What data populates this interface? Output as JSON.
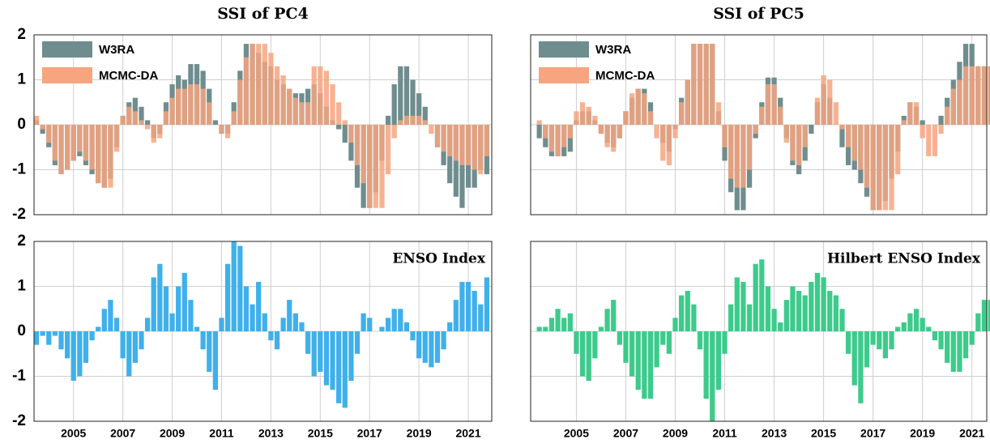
{
  "chart_data": [
    {
      "type": "bar",
      "title": "SSI of PC4",
      "legend": "upper left",
      "grid": true,
      "show_xtick_labels": false,
      "show_ytick_labels": true,
      "xlim": [
        2003.4,
        2021.95
      ],
      "ylim": [
        -2,
        2
      ],
      "xticks": [
        2005,
        2007,
        2009,
        2011,
        2013,
        2015,
        2017,
        2019,
        2021
      ],
      "yticks": [
        -2,
        -1,
        0,
        1,
        2
      ],
      "x": [
        2003.5,
        2003.75,
        2004,
        2004.25,
        2004.5,
        2004.75,
        2005,
        2005.25,
        2005.5,
        2005.75,
        2006,
        2006.25,
        2006.5,
        2006.75,
        2007,
        2007.25,
        2007.5,
        2007.75,
        2008,
        2008.25,
        2008.5,
        2008.75,
        2009,
        2009.25,
        2009.5,
        2009.75,
        2010,
        2010.25,
        2010.5,
        2010.75,
        2011,
        2011.25,
        2011.5,
        2011.75,
        2012,
        2012.25,
        2012.5,
        2012.75,
        2013,
        2013.25,
        2013.5,
        2013.75,
        2014,
        2014.25,
        2014.5,
        2014.75,
        2015,
        2015.25,
        2015.5,
        2015.75,
        2016,
        2016.25,
        2016.5,
        2016.75,
        2017,
        2017.25,
        2017.5,
        2017.75,
        2018,
        2018.25,
        2018.5,
        2018.75,
        2019,
        2019.25,
        2019.5,
        2019.75,
        2020,
        2020.25,
        2020.5,
        2020.75,
        2021,
        2021.25,
        2021.5,
        2021.75
      ],
      "series": [
        {
          "name": "W3RA",
          "color": "#6f8d8f",
          "values": [
            0.1,
            -0.2,
            -0.5,
            -0.9,
            -1.1,
            -1.0,
            -0.8,
            -0.7,
            -0.9,
            -1.1,
            -1.3,
            -1.4,
            -1.2,
            -0.5,
            0.2,
            0.5,
            0.6,
            0.4,
            0.1,
            -0.3,
            -0.2,
            0.5,
            0.9,
            1.1,
            1.0,
            1.35,
            1.35,
            1.2,
            0.8,
            0.1,
            -0.2,
            -0.2,
            0.5,
            1.2,
            1.8,
            1.8,
            1.6,
            1.4,
            1.3,
            1.0,
            0.9,
            0.8,
            0.7,
            0.7,
            0.8,
            0.9,
            0.7,
            0.4,
            0.1,
            -0.1,
            -0.4,
            -0.8,
            -1.4,
            -1.85,
            -1.85,
            -1.5,
            -0.8,
            0.2,
            0.9,
            1.3,
            1.3,
            1.0,
            0.7,
            0.4,
            0.0,
            -0.5,
            -0.9,
            -1.3,
            -1.6,
            -1.85,
            -1.4,
            -1.4,
            -1.0,
            -1.1
          ]
        },
        {
          "name": "MCMC-DA",
          "color": "#f6a57f",
          "values": [
            0.2,
            -0.1,
            -0.4,
            -0.8,
            -1.1,
            -1.0,
            -0.8,
            -0.6,
            -0.8,
            -1.0,
            -1.3,
            -1.4,
            -1.4,
            -0.6,
            0.2,
            0.4,
            0.3,
            0.1,
            -0.1,
            -0.4,
            -0.3,
            0.3,
            0.6,
            0.8,
            0.8,
            0.9,
            0.9,
            0.8,
            0.5,
            0.0,
            -0.2,
            -0.3,
            0.3,
            1.0,
            1.5,
            1.8,
            1.8,
            1.8,
            1.6,
            1.3,
            1.1,
            0.8,
            0.6,
            0.5,
            0.5,
            1.3,
            1.3,
            1.2,
            0.9,
            0.5,
            0.1,
            -0.4,
            -0.9,
            -1.3,
            -1.85,
            -1.85,
            -1.85,
            -1.1,
            -0.3,
            0.1,
            0.2,
            0.2,
            0.2,
            0.1,
            -0.2,
            -0.5,
            -0.6,
            -0.7,
            -0.8,
            -0.9,
            -0.9,
            -1.0,
            -1.1,
            -0.7
          ]
        }
      ]
    },
    {
      "type": "bar",
      "title": "SSI of PC5",
      "legend": "upper left",
      "grid": true,
      "show_xtick_labels": false,
      "show_ytick_labels": false,
      "xlim": [
        2003.15,
        2021.6
      ],
      "ylim": [
        -2,
        2
      ],
      "xticks": [
        2005,
        2007,
        2009,
        2011,
        2013,
        2015,
        2017,
        2019,
        2021
      ],
      "yticks": [
        -2,
        -1,
        0,
        1,
        2
      ],
      "x": [
        2003.5,
        2003.75,
        2004,
        2004.25,
        2004.5,
        2004.75,
        2005,
        2005.25,
        2005.5,
        2005.75,
        2006,
        2006.25,
        2006.5,
        2006.75,
        2007,
        2007.25,
        2007.5,
        2007.75,
        2008,
        2008.25,
        2008.5,
        2008.75,
        2009,
        2009.25,
        2009.5,
        2009.75,
        2010,
        2010.25,
        2010.5,
        2010.75,
        2011,
        2011.25,
        2011.5,
        2011.75,
        2012,
        2012.25,
        2012.5,
        2012.75,
        2013,
        2013.25,
        2013.5,
        2013.75,
        2014,
        2014.25,
        2014.5,
        2014.75,
        2015,
        2015.25,
        2015.5,
        2015.75,
        2016,
        2016.25,
        2016.5,
        2016.75,
        2017,
        2017.25,
        2017.5,
        2017.75,
        2018,
        2018.25,
        2018.5,
        2018.75,
        2019,
        2019.25,
        2019.5,
        2019.75,
        2020,
        2020.25,
        2020.5,
        2020.75,
        2021,
        2021.25,
        2021.5,
        2021.75
      ],
      "series": [
        {
          "name": "W3RA",
          "color": "#6f8d8f",
          "values": [
            -0.3,
            -0.5,
            -0.7,
            -0.7,
            -0.7,
            -0.6,
            0.1,
            0.3,
            0.3,
            0.1,
            -0.2,
            -0.4,
            -0.5,
            -0.3,
            0.3,
            0.6,
            0.8,
            0.8,
            0.5,
            0.0,
            -0.4,
            -0.6,
            -0.1,
            0.6,
            1.0,
            1.8,
            1.8,
            1.8,
            1.8,
            0.3,
            -0.8,
            -1.5,
            -1.9,
            -1.9,
            -1.4,
            -0.3,
            0.5,
            1.05,
            1.05,
            0.6,
            -0.3,
            -0.9,
            -1.1,
            -0.8,
            -0.2,
            0.5,
            0.9,
            0.6,
            0.0,
            -0.5,
            -0.9,
            -1.0,
            -1.3,
            -1.6,
            -1.9,
            -1.9,
            -1.7,
            -1.2,
            -0.6,
            0.2,
            0.5,
            0.4,
            0.1,
            0.0,
            0.0,
            0.2,
            0.6,
            1.0,
            1.4,
            1.8,
            1.8,
            1.3,
            1.3,
            1.3
          ]
        },
        {
          "name": "MCMC-DA",
          "color": "#f6a57f",
          "values": [
            0.1,
            -0.3,
            -0.6,
            -0.7,
            -0.5,
            -0.3,
            0.3,
            0.5,
            0.4,
            0.2,
            -0.2,
            -0.5,
            -0.6,
            -0.3,
            0.3,
            0.7,
            0.8,
            0.7,
            0.3,
            -0.3,
            -0.8,
            -0.9,
            -0.3,
            0.5,
            1.0,
            1.8,
            1.8,
            1.8,
            1.8,
            0.5,
            -0.5,
            -1.2,
            -1.4,
            -1.4,
            -1.0,
            -0.2,
            0.4,
            0.9,
            0.9,
            0.4,
            -0.4,
            -0.8,
            -0.9,
            -0.5,
            0.0,
            0.6,
            1.1,
            1.0,
            0.5,
            -0.1,
            -0.5,
            -0.8,
            -1.0,
            -1.4,
            -1.9,
            -1.9,
            -1.9,
            -1.9,
            -1.1,
            0.1,
            0.5,
            0.5,
            -0.3,
            -0.7,
            -0.7,
            -0.2,
            0.4,
            0.8,
            1.0,
            1.3,
            1.3,
            1.3,
            1.3,
            1.3
          ]
        }
      ]
    },
    {
      "type": "bar",
      "legend": "upper right",
      "grid": true,
      "show_xtick_labels": true,
      "show_ytick_labels": true,
      "xlim": [
        2003.4,
        2021.95
      ],
      "ylim": [
        -2,
        2
      ],
      "xticks": [
        2005,
        2007,
        2009,
        2011,
        2013,
        2015,
        2017,
        2019,
        2021
      ],
      "yticks": [
        -2,
        -1,
        0,
        1,
        2
      ],
      "x": [
        2003.5,
        2003.75,
        2004,
        2004.25,
        2004.5,
        2004.75,
        2005,
        2005.25,
        2005.5,
        2005.75,
        2006,
        2006.25,
        2006.5,
        2006.75,
        2007,
        2007.25,
        2007.5,
        2007.75,
        2008,
        2008.25,
        2008.5,
        2008.75,
        2009,
        2009.25,
        2009.5,
        2009.75,
        2010,
        2010.25,
        2010.5,
        2010.75,
        2011,
        2011.25,
        2011.5,
        2011.75,
        2012,
        2012.25,
        2012.5,
        2012.75,
        2013,
        2013.25,
        2013.5,
        2013.75,
        2014,
        2014.25,
        2014.5,
        2014.75,
        2015,
        2015.25,
        2015.5,
        2015.75,
        2016,
        2016.25,
        2016.5,
        2016.75,
        2017,
        2017.25,
        2017.5,
        2017.75,
        2018,
        2018.25,
        2018.5,
        2018.75,
        2019,
        2019.25,
        2019.5,
        2019.75,
        2020,
        2020.25,
        2020.5,
        2020.75,
        2021,
        2021.25,
        2021.5,
        2021.75
      ],
      "series": [
        {
          "name": "ENSO Index",
          "color": "#3fb0ea",
          "values": [
            -0.3,
            -0.1,
            -0.3,
            -0.1,
            -0.4,
            -0.6,
            -1.1,
            -1.0,
            -0.7,
            -0.2,
            0.1,
            0.5,
            0.7,
            0.3,
            -0.6,
            -1.0,
            -0.7,
            -0.4,
            0.3,
            1.2,
            1.5,
            1.0,
            0.4,
            1.0,
            1.3,
            0.7,
            0.1,
            -0.4,
            -0.9,
            -1.3,
            0.3,
            1.5,
            2.0,
            1.9,
            1.0,
            0.6,
            1.1,
            0.4,
            -0.2,
            -0.4,
            0.3,
            0.7,
            0.4,
            0.2,
            -0.5,
            -1.0,
            -0.9,
            -1.2,
            -1.3,
            -1.6,
            -1.7,
            -1.1,
            -0.5,
            0.4,
            0.3,
            0.0,
            0.1,
            0.3,
            0.5,
            0.5,
            0.2,
            -0.2,
            -0.6,
            -0.7,
            -0.8,
            -0.7,
            -0.4,
            0.2,
            0.7,
            1.1,
            1.1,
            0.9,
            0.6,
            1.2
          ]
        }
      ]
    },
    {
      "type": "bar",
      "legend": "upper right",
      "grid": true,
      "show_xtick_labels": true,
      "show_ytick_labels": false,
      "xlim": [
        2003.15,
        2021.6
      ],
      "ylim": [
        -2,
        2
      ],
      "xticks": [
        2005,
        2007,
        2009,
        2011,
        2013,
        2015,
        2017,
        2019,
        2021
      ],
      "yticks": [
        -2,
        -1,
        0,
        1,
        2
      ],
      "x": [
        2003.5,
        2003.75,
        2004,
        2004.25,
        2004.5,
        2004.75,
        2005,
        2005.25,
        2005.5,
        2005.75,
        2006,
        2006.25,
        2006.5,
        2006.75,
        2007,
        2007.25,
        2007.5,
        2007.75,
        2008,
        2008.25,
        2008.5,
        2008.75,
        2009,
        2009.25,
        2009.5,
        2009.75,
        2010,
        2010.25,
        2010.5,
        2010.75,
        2011,
        2011.25,
        2011.5,
        2011.75,
        2012,
        2012.25,
        2012.5,
        2012.75,
        2013,
        2013.25,
        2013.5,
        2013.75,
        2014,
        2014.25,
        2014.5,
        2014.75,
        2015,
        2015.25,
        2015.5,
        2015.75,
        2016,
        2016.25,
        2016.5,
        2016.75,
        2017,
        2017.25,
        2017.5,
        2017.75,
        2018,
        2018.25,
        2018.5,
        2018.75,
        2019,
        2019.25,
        2019.5,
        2019.75,
        2020,
        2020.25,
        2020.5,
        2020.75,
        2021,
        2021.25,
        2021.5,
        2021.75
      ],
      "series": [
        {
          "name": "Hilbert ENSO Index",
          "color": "#3ccb8b",
          "values": [
            0.1,
            0.1,
            0.3,
            0.5,
            0.3,
            0.4,
            -0.5,
            -1.0,
            -1.1,
            -0.6,
            0.1,
            0.5,
            0.7,
            -0.3,
            -0.7,
            -1.0,
            -1.3,
            -1.5,
            -1.5,
            -0.8,
            -0.3,
            -0.5,
            0.3,
            0.8,
            0.9,
            0.6,
            -0.4,
            -1.5,
            -2.0,
            -1.3,
            -0.5,
            0.6,
            1.2,
            1.1,
            0.6,
            1.5,
            1.6,
            1.0,
            0.5,
            0.2,
            0.7,
            1.0,
            0.9,
            0.8,
            1.1,
            1.3,
            1.2,
            0.9,
            0.8,
            0.5,
            -0.5,
            -1.2,
            -1.6,
            -0.8,
            -0.3,
            -0.4,
            -0.6,
            -0.4,
            0.1,
            0.2,
            0.4,
            0.5,
            0.3,
            0.1,
            -0.2,
            -0.4,
            -0.7,
            -0.9,
            -0.9,
            -0.6,
            -0.3,
            0.4,
            0.7,
            0.7
          ]
        }
      ]
    }
  ]
}
